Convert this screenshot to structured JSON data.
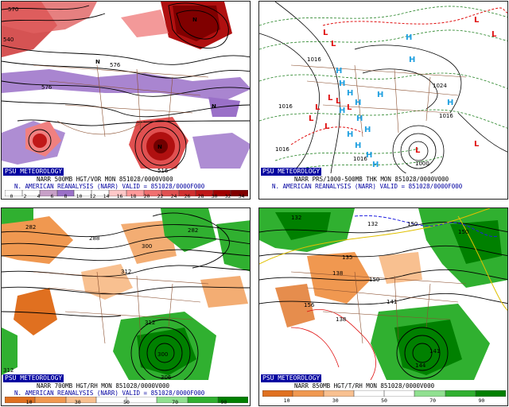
{
  "badge": "PSU METEOROLOGY",
  "panels": [
    {
      "line1": "NARR 500MB HGT/VOR MON 851028/0000V000",
      "line2": "N. AMERICAN REANALYSIS (NARR) VALID = 851028/0000F000",
      "scale_labels": [
        "0",
        "2",
        "4",
        "6",
        "8",
        "10",
        "12",
        "14",
        "16",
        "18",
        "20",
        "22",
        "24",
        "26",
        "28",
        "30",
        "32",
        "34"
      ],
      "contour_labels": [
        "576",
        "576",
        "540",
        "570",
        "516"
      ],
      "lows": [
        "N",
        "N",
        "N",
        "N"
      ]
    },
    {
      "line1": "NARR PRS/1000-500MB THK MON 851028/0000V000",
      "line2": "N. AMERICAN REANALYSIS (NARR) VALID = 851028/0000F000",
      "pressure_labels": [
        "1016",
        "1016",
        "1024",
        "1016",
        "1016",
        "1000",
        "1016"
      ],
      "highs": [
        "H",
        "H",
        "H",
        "H",
        "H",
        "H",
        "H",
        "H",
        "H",
        "H",
        "H",
        "H",
        "H",
        "H",
        "H"
      ],
      "lows": [
        "L",
        "L",
        "L",
        "L",
        "L",
        "L",
        "L",
        "L",
        "L",
        "L",
        "L",
        "L"
      ]
    },
    {
      "line1": "NARR 700MB HGT/RH MON 851028/0000V000",
      "line2": "N. AMERICAN REANALYSIS (NARR) VALID = 851028/0000F000",
      "scale_labels": [
        "10",
        "30",
        "50",
        "70",
        "90"
      ],
      "contour_labels": [
        "282",
        "282",
        "288",
        "300",
        "312",
        "300",
        "312",
        "306",
        "312"
      ]
    },
    {
      "line1": "NARR 850MB HGT/T/RH MON 851028/0000V000",
      "line2": "",
      "scale_labels": [
        "10",
        "30",
        "50",
        "70",
        "90"
      ],
      "contour_labels": [
        "132",
        "132",
        "150",
        "135",
        "138",
        "150",
        "141",
        "150",
        "138",
        "141",
        "144",
        "156"
      ]
    }
  ],
  "colors": {
    "badge": "#0000a0",
    "vorticity": [
      "#ffffff",
      "#ffffff",
      "#c8a0c8",
      "#9a70c8",
      "#ffffff",
      "#ffffff",
      "#ffc8c8",
      "#ff9a9a",
      "#f07070",
      "#e05050",
      "#d03030",
      "#c01818",
      "#a00000",
      "#800000"
    ],
    "rh": [
      "#e07020",
      "#f09850",
      "#f8c090",
      "#ffffff",
      "#ffffff",
      "#90e090",
      "#30b030",
      "#008000"
    ],
    "high": "#20a0e0",
    "low": "#e01010"
  }
}
